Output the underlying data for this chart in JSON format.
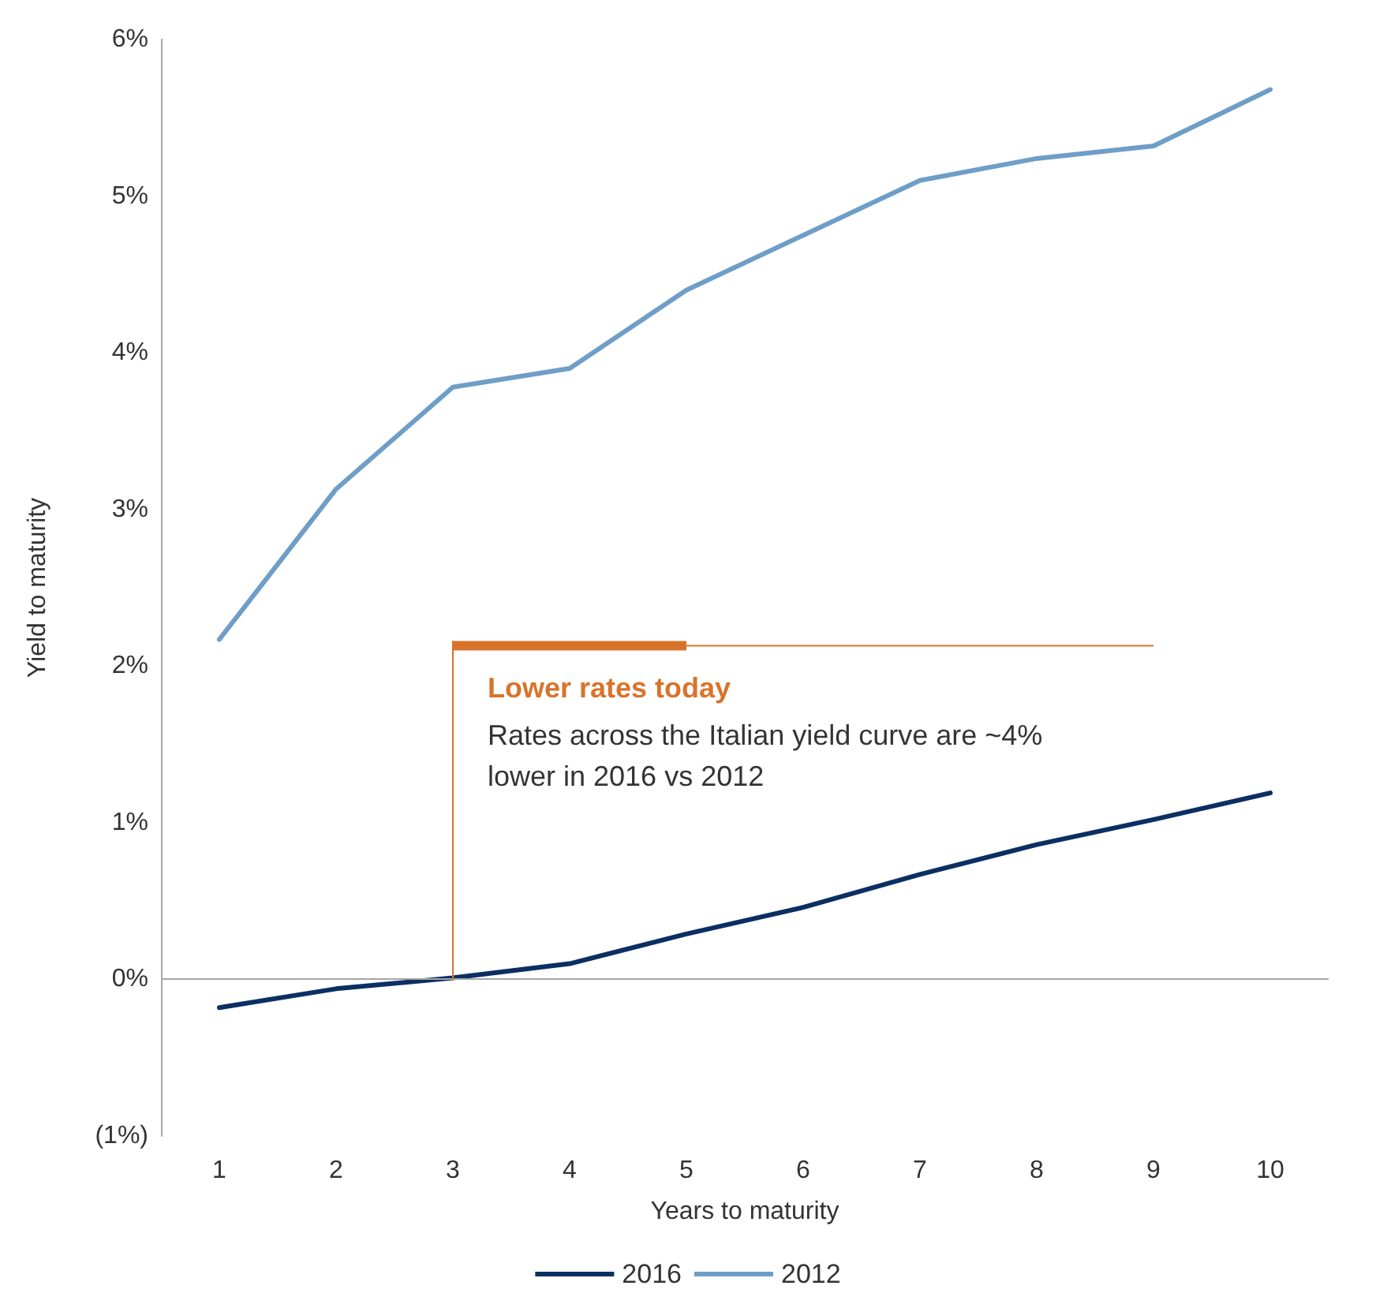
{
  "chart_data": {
    "type": "line",
    "xlabel": "Years to maturity",
    "ylabel": "Yield to maturity",
    "categories": [
      "1",
      "2",
      "3",
      "4",
      "5",
      "6",
      "7",
      "8",
      "9",
      "10"
    ],
    "series": [
      {
        "name": "2016",
        "color": "#0b2f63",
        "values": [
          -0.18,
          -0.06,
          0.01,
          0.1,
          0.29,
          0.46,
          0.67,
          0.86,
          1.02,
          1.19
        ]
      },
      {
        "name": "2012",
        "color": "#6e9ec8",
        "values": [
          2.17,
          3.13,
          3.78,
          3.9,
          4.4,
          4.75,
          5.1,
          5.24,
          5.32,
          5.68
        ]
      }
    ],
    "ylim": [
      -1,
      6
    ],
    "yticks": [
      {
        "value": -1,
        "label": "(1%)"
      },
      {
        "value": 0,
        "label": "0%"
      },
      {
        "value": 1,
        "label": "1%"
      },
      {
        "value": 2,
        "label": "2%"
      },
      {
        "value": 3,
        "label": "3%"
      },
      {
        "value": 4,
        "label": "4%"
      },
      {
        "value": 5,
        "label": "5%"
      },
      {
        "value": 6,
        "label": "6%"
      }
    ],
    "ref_lines": [
      {
        "axis": "y",
        "value": 0,
        "color": "#a6a6a6"
      }
    ],
    "annotations": [
      "Lower rates today",
      "Rates across the Italian yield curve are ~4% lower in 2016 vs 2012"
    ],
    "legend": "bottom",
    "grid": false,
    "marker": "none",
    "line_style": "solid"
  }
}
